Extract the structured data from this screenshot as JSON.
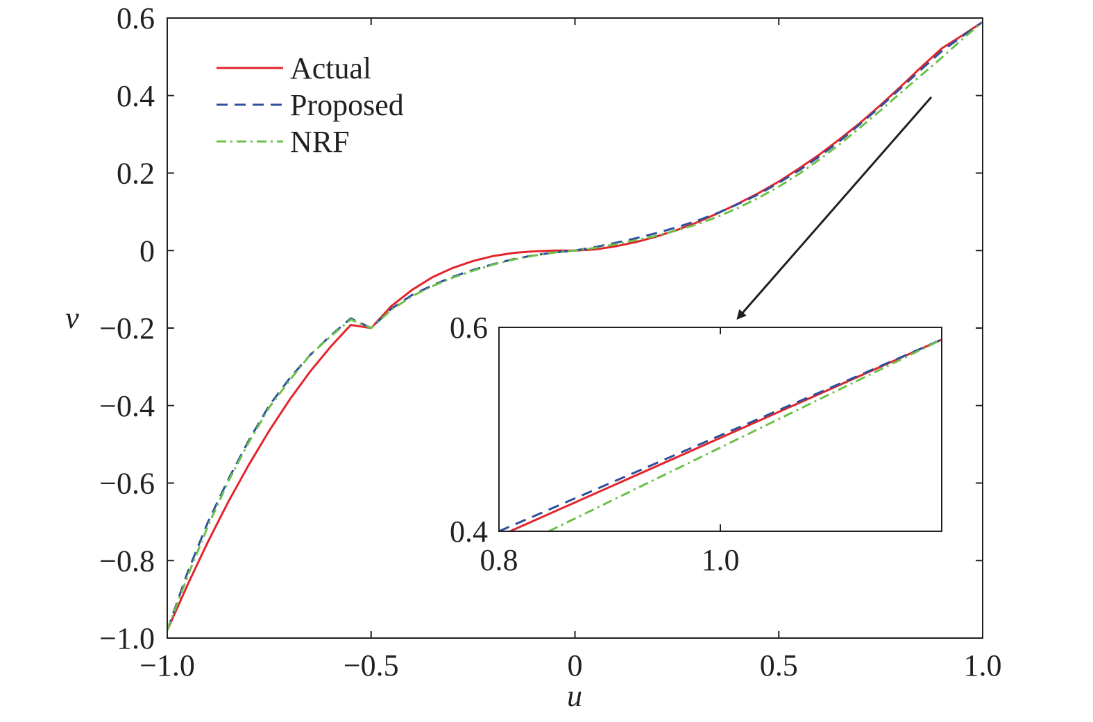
{
  "chart_data": {
    "type": "line",
    "xlabel": "u",
    "ylabel": "v",
    "xlim": [
      -1.0,
      1.0
    ],
    "ylim": [
      -1.0,
      0.6
    ],
    "x_ticks": [
      -1.0,
      -0.5,
      0,
      0.5,
      1.0
    ],
    "x_tick_labels": [
      "−1.0",
      "−0.5",
      "0",
      "0.5",
      "1.0"
    ],
    "y_ticks": [
      0.6,
      0.4,
      0.2,
      0,
      -0.2,
      -0.4,
      -0.6,
      -0.8,
      -1.0
    ],
    "y_tick_labels": [
      "0.6",
      "0.4",
      "0.2",
      "0",
      "−0.2",
      "−0.4",
      "−0.6",
      "−0.8",
      "−1.0"
    ],
    "grid": false,
    "legend_position": "top-left",
    "series": [
      {
        "name": "Actual",
        "color": "#e3242b",
        "style": "solid",
        "x": [
          -1.0,
          -0.95,
          -0.9,
          -0.85,
          -0.8,
          -0.75,
          -0.7,
          -0.65,
          -0.6,
          -0.55,
          -0.5,
          -0.45,
          -0.4,
          -0.35,
          -0.3,
          -0.25,
          -0.2,
          -0.15,
          -0.1,
          -0.05,
          0,
          0.05,
          0.1,
          0.15,
          0.2,
          0.25,
          0.3,
          0.35,
          0.4,
          0.45,
          0.5,
          0.55,
          0.6,
          0.65,
          0.7,
          0.75,
          0.8,
          0.85,
          0.9,
          0.95,
          1.0
        ],
        "y": [
          -0.98,
          -0.862,
          -0.751,
          -0.648,
          -0.553,
          -0.465,
          -0.385,
          -0.313,
          -0.249,
          -0.192,
          -0.2,
          -0.143,
          -0.102,
          -0.069,
          -0.045,
          -0.027,
          -0.014,
          -0.006,
          -0.002,
          0.0,
          0.0,
          0.003,
          0.011,
          0.022,
          0.036,
          0.053,
          0.073,
          0.096,
          0.121,
          0.148,
          0.178,
          0.212,
          0.248,
          0.288,
          0.33,
          0.376,
          0.424,
          0.474,
          0.522,
          0.555,
          0.59
        ]
      },
      {
        "name": "Proposed",
        "color": "#2e4f9c",
        "style": "dashed",
        "x": [
          -1.0,
          -0.95,
          -0.9,
          -0.85,
          -0.8,
          -0.75,
          -0.7,
          -0.65,
          -0.6,
          -0.55,
          -0.5,
          -0.45,
          -0.4,
          -0.35,
          -0.3,
          -0.25,
          -0.2,
          -0.15,
          -0.1,
          -0.05,
          0,
          0.05,
          0.1,
          0.15,
          0.2,
          0.25,
          0.3,
          0.35,
          0.4,
          0.45,
          0.5,
          0.55,
          0.6,
          0.65,
          0.7,
          0.75,
          0.8,
          0.85,
          0.9,
          0.95,
          1.0
        ],
        "y": [
          -0.98,
          -0.83,
          -0.7,
          -0.59,
          -0.49,
          -0.4,
          -0.33,
          -0.27,
          -0.22,
          -0.175,
          -0.2,
          -0.15,
          -0.115,
          -0.09,
          -0.068,
          -0.05,
          -0.035,
          -0.022,
          -0.012,
          -0.005,
          0.0,
          0.009,
          0.02,
          0.032,
          0.045,
          0.06,
          0.077,
          0.097,
          0.12,
          0.145,
          0.175,
          0.207,
          0.243,
          0.283,
          0.327,
          0.372,
          0.42,
          0.468,
          0.515,
          0.553,
          0.59
        ]
      },
      {
        "name": "NRF",
        "color": "#6cc04a",
        "style": "dashdot",
        "x": [
          -1.0,
          -0.95,
          -0.9,
          -0.85,
          -0.8,
          -0.75,
          -0.7,
          -0.65,
          -0.6,
          -0.55,
          -0.5,
          -0.45,
          -0.4,
          -0.35,
          -0.3,
          -0.25,
          -0.2,
          -0.15,
          -0.1,
          -0.05,
          0,
          0.05,
          0.1,
          0.15,
          0.2,
          0.25,
          0.3,
          0.35,
          0.4,
          0.45,
          0.5,
          0.55,
          0.6,
          0.65,
          0.7,
          0.75,
          0.8,
          0.85,
          0.9,
          0.95,
          1.0
        ],
        "y": [
          -0.98,
          -0.84,
          -0.71,
          -0.595,
          -0.495,
          -0.405,
          -0.335,
          -0.27,
          -0.222,
          -0.178,
          -0.2,
          -0.153,
          -0.118,
          -0.092,
          -0.07,
          -0.052,
          -0.036,
          -0.023,
          -0.013,
          -0.005,
          0.0,
          0.007,
          0.016,
          0.027,
          0.038,
          0.052,
          0.068,
          0.087,
          0.11,
          0.136,
          0.165,
          0.198,
          0.235,
          0.275,
          0.318,
          0.362,
          0.408,
          0.453,
          0.498,
          0.545,
          0.59
        ]
      }
    ],
    "inset": {
      "xlim": [
        0.8,
        1.2
      ],
      "ylim": [
        0.4,
        0.6
      ],
      "x_ticks": [
        0.8,
        1.0
      ],
      "x_tick_labels": [
        "0.8",
        "1.0"
      ],
      "y_ticks": [
        0.6,
        0.4
      ],
      "y_tick_labels": [
        "0.6",
        "0.4"
      ],
      "series": [
        {
          "name": "Actual",
          "x": [
            0.81,
            1.2
          ],
          "y": [
            0.4,
            0.588
          ]
        },
        {
          "name": "Proposed",
          "x": [
            0.8,
            1.2
          ],
          "y": [
            0.4,
            0.588
          ]
        },
        {
          "name": "NRF",
          "x": [
            0.845,
            1.2
          ],
          "y": [
            0.4,
            0.588
          ]
        }
      ]
    },
    "legend": [
      {
        "name": "Actual",
        "color": "#e3242b",
        "style": "solid"
      },
      {
        "name": "Proposed",
        "color": "#2e4f9c",
        "style": "dashed"
      },
      {
        "name": "NRF",
        "color": "#6cc04a",
        "style": "dashdot"
      }
    ]
  }
}
